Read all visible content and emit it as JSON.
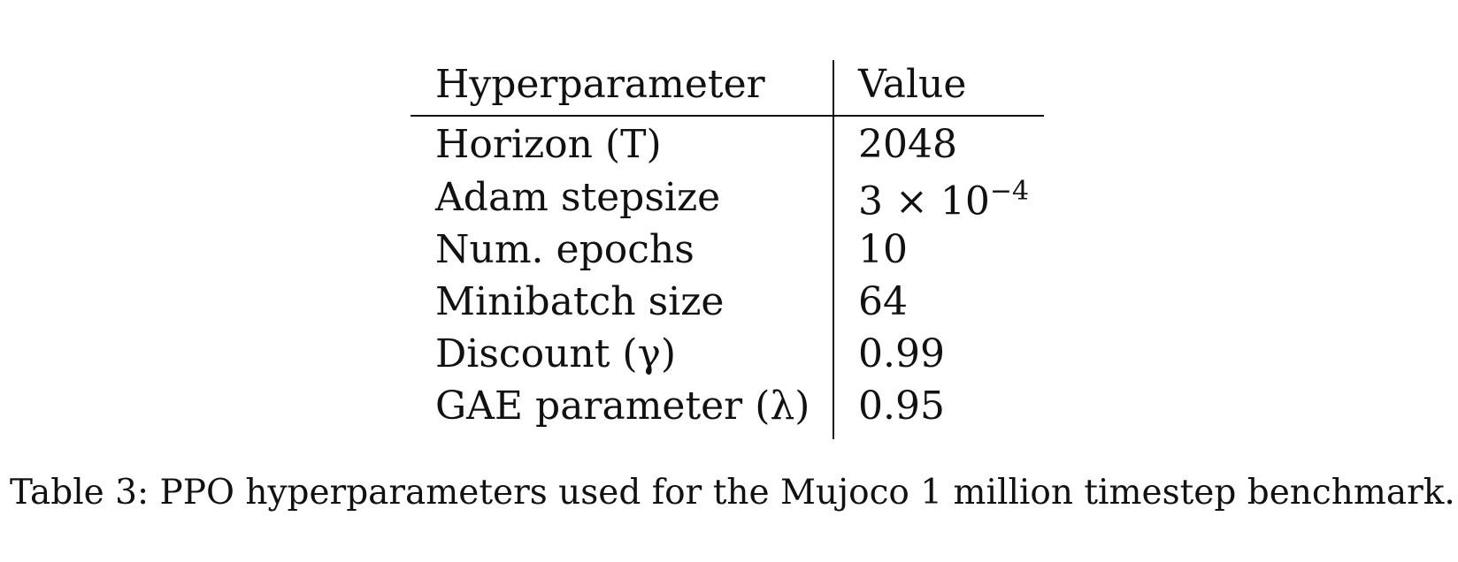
{
  "table": {
    "headers": {
      "hyperparameter": "Hyperparameter",
      "value": "Value"
    },
    "rows": [
      {
        "hyperparameter": "Horizon (T)",
        "value": "2048"
      },
      {
        "hyperparameter": "Adam stepsize",
        "value": "3 × 10",
        "value_sup": "−4"
      },
      {
        "hyperparameter": "Num. epochs",
        "value": "10"
      },
      {
        "hyperparameter": "Minibatch size",
        "value": "64"
      },
      {
        "hyperparameter": "Discount (γ)",
        "value": "0.99"
      },
      {
        "hyperparameter": "GAE parameter (λ)",
        "value": "0.95"
      }
    ]
  },
  "caption": "Table 3: PPO hyperparameters used for the Mujoco 1 million timestep benchmark."
}
